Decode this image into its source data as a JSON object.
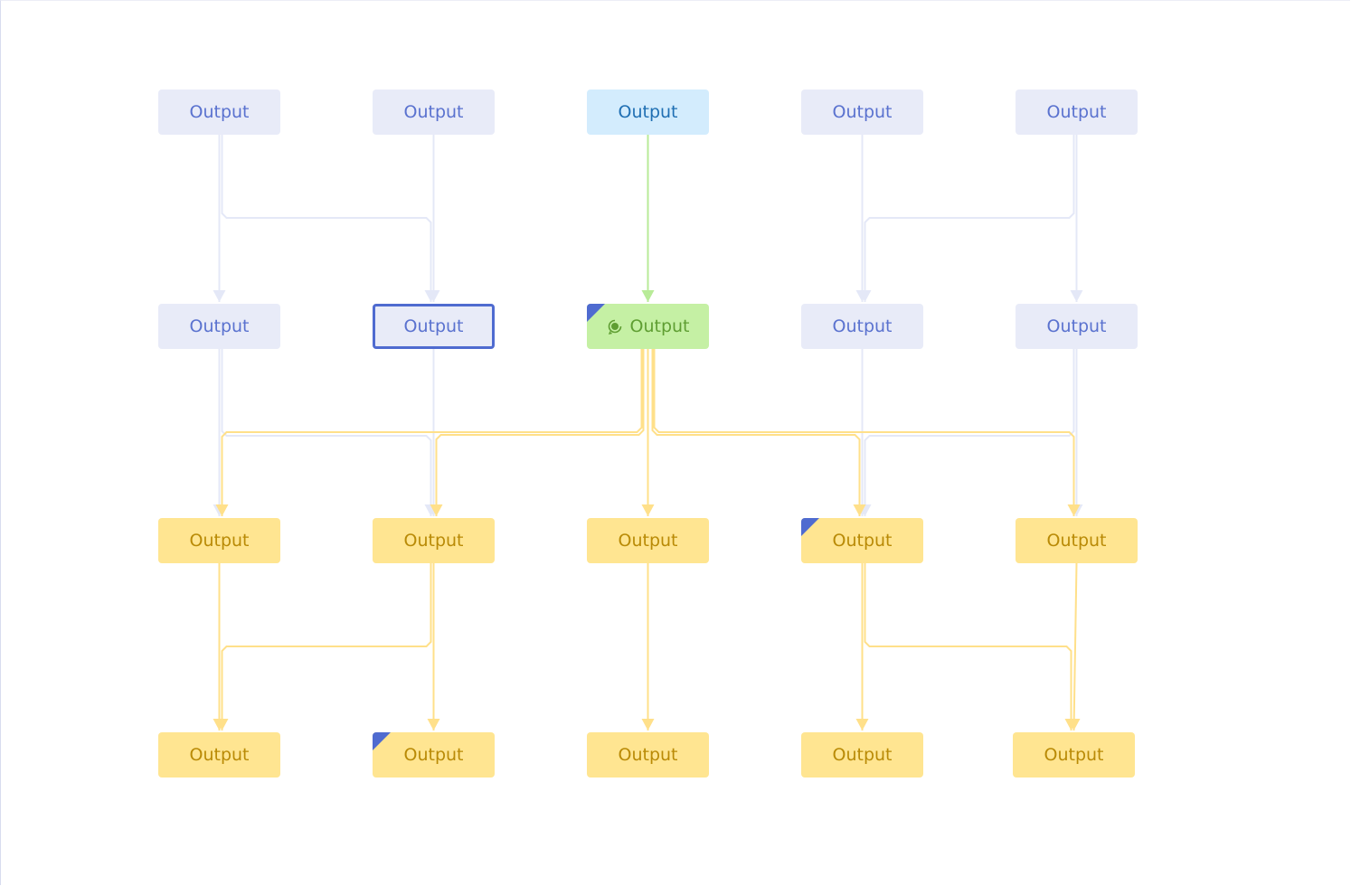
{
  "colors": {
    "gray_edge": "#e4e8f7",
    "green_edge": "#b8eb98",
    "yellow_edge": "#ffe08a",
    "marker": "#4f6bd0"
  },
  "nodes": [
    {
      "id": "n00",
      "label": "Output",
      "style": "gray"
    },
    {
      "id": "n01",
      "label": "Output",
      "style": "gray"
    },
    {
      "id": "n02",
      "label": "Output",
      "style": "blue"
    },
    {
      "id": "n03",
      "label": "Output",
      "style": "gray"
    },
    {
      "id": "n04",
      "label": "Output",
      "style": "gray"
    },
    {
      "id": "n10",
      "label": "Output",
      "style": "gray"
    },
    {
      "id": "n11",
      "label": "Output",
      "style": "gray",
      "selected": true
    },
    {
      "id": "n12",
      "label": "Output",
      "style": "green",
      "corner_marker": true,
      "icon": "target-refresh-icon"
    },
    {
      "id": "n13",
      "label": "Output",
      "style": "gray"
    },
    {
      "id": "n14",
      "label": "Output",
      "style": "gray"
    },
    {
      "id": "n20",
      "label": "Output",
      "style": "yellow"
    },
    {
      "id": "n21",
      "label": "Output",
      "style": "yellow"
    },
    {
      "id": "n22",
      "label": "Output",
      "style": "yellow"
    },
    {
      "id": "n23",
      "label": "Output",
      "style": "yellow",
      "corner_marker": true
    },
    {
      "id": "n24",
      "label": "Output",
      "style": "yellow"
    },
    {
      "id": "n30",
      "label": "Output",
      "style": "yellow"
    },
    {
      "id": "n31",
      "label": "Output",
      "style": "yellow",
      "corner_marker": true
    },
    {
      "id": "n32",
      "label": "Output",
      "style": "yellow"
    },
    {
      "id": "n33",
      "label": "Output",
      "style": "yellow"
    },
    {
      "id": "n34",
      "label": "Output",
      "style": "yellow"
    }
  ],
  "edges": [
    {
      "from": "n00",
      "to": "n10",
      "color": "gray"
    },
    {
      "from": "n00",
      "to": "n11",
      "color": "gray"
    },
    {
      "from": "n01",
      "to": "n11",
      "color": "gray"
    },
    {
      "from": "n02",
      "to": "n12",
      "color": "green"
    },
    {
      "from": "n03",
      "to": "n13",
      "color": "gray"
    },
    {
      "from": "n04",
      "to": "n13",
      "color": "gray"
    },
    {
      "from": "n04",
      "to": "n14",
      "color": "gray"
    },
    {
      "from": "n10",
      "to": "n20",
      "color": "gray"
    },
    {
      "from": "n10",
      "to": "n21",
      "color": "gray"
    },
    {
      "from": "n11",
      "to": "n21",
      "color": "gray"
    },
    {
      "from": "n13",
      "to": "n23",
      "color": "gray"
    },
    {
      "from": "n14",
      "to": "n23",
      "color": "gray"
    },
    {
      "from": "n14",
      "to": "n24",
      "color": "gray"
    },
    {
      "from": "n12",
      "to": "n20",
      "color": "yellow"
    },
    {
      "from": "n12",
      "to": "n21",
      "color": "yellow"
    },
    {
      "from": "n12",
      "to": "n22",
      "color": "yellow"
    },
    {
      "from": "n12",
      "to": "n23",
      "color": "yellow"
    },
    {
      "from": "n12",
      "to": "n24",
      "color": "yellow"
    },
    {
      "from": "n20",
      "to": "n30",
      "color": "yellow"
    },
    {
      "from": "n21",
      "to": "n30",
      "color": "yellow"
    },
    {
      "from": "n21",
      "to": "n31",
      "color": "yellow"
    },
    {
      "from": "n22",
      "to": "n32",
      "color": "yellow"
    },
    {
      "from": "n23",
      "to": "n33",
      "color": "yellow"
    },
    {
      "from": "n23",
      "to": "n34",
      "color": "yellow"
    },
    {
      "from": "n24",
      "to": "n34",
      "color": "yellow"
    }
  ]
}
